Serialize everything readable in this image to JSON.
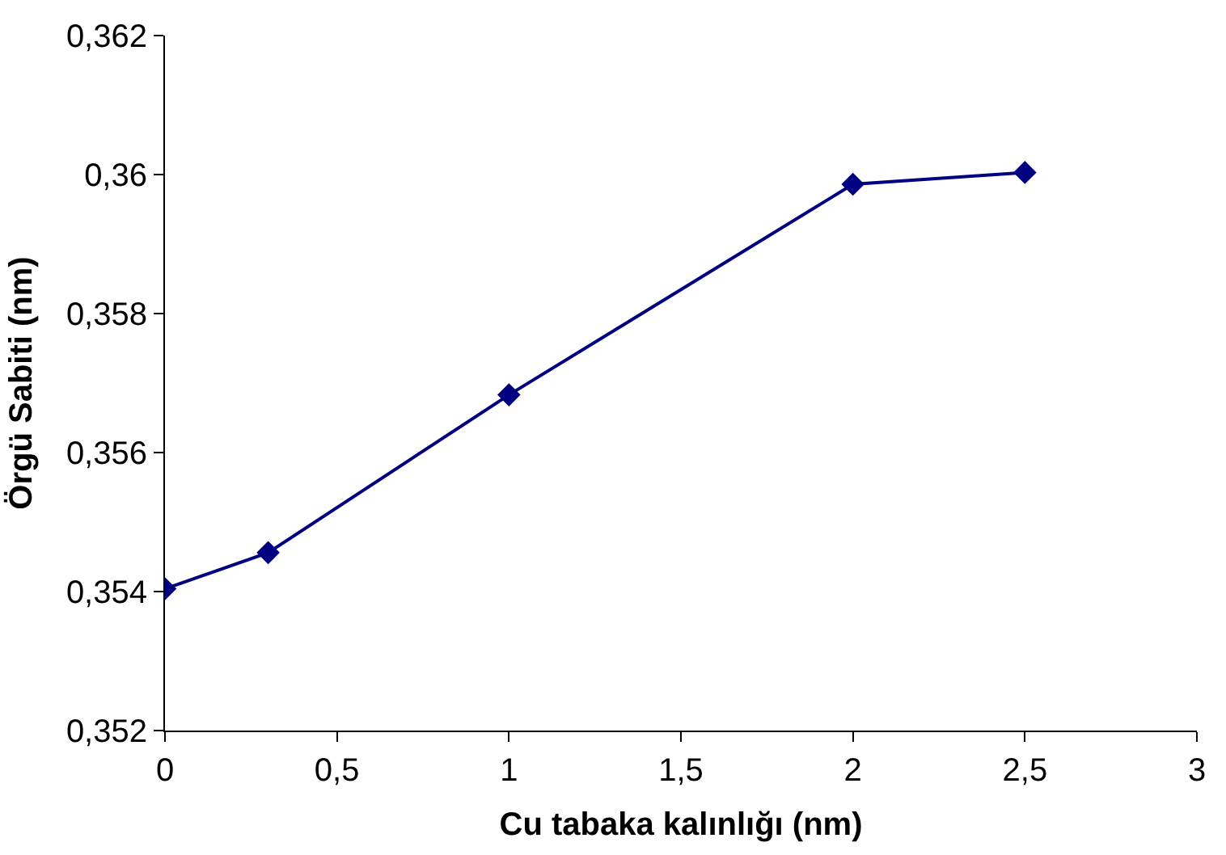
{
  "chart_data": {
    "type": "line",
    "xlabel": "Cu tabaka kalınlığı (nm)",
    "ylabel": "Örgü Sabiti (nm)",
    "x": [
      0,
      0.3,
      1,
      2,
      2.5
    ],
    "series": [
      {
        "color": "#000080",
        "values": [
          0.35404,
          0.35456,
          0.35683,
          0.35986,
          0.36003
        ]
      }
    ],
    "xlim": [
      0,
      3
    ],
    "ylim": [
      0.352,
      0.362
    ],
    "xticks": [
      0,
      {
        "value": 0.5,
        "label": "0,5"
      },
      1,
      {
        "value": 1.5,
        "label": "1,5"
      },
      2,
      {
        "value": 2.5,
        "label": "2,5"
      },
      3
    ],
    "yticks": [
      {
        "value": 0.352,
        "label": "0,352"
      },
      {
        "value": 0.354,
        "label": "0,354"
      },
      {
        "value": 0.356,
        "label": "0,356"
      },
      {
        "value": 0.358,
        "label": "0,358"
      },
      {
        "value": 0.36,
        "label": "0,36"
      },
      {
        "value": 0.362,
        "label": "0,362"
      }
    ],
    "marker": "diamond"
  }
}
